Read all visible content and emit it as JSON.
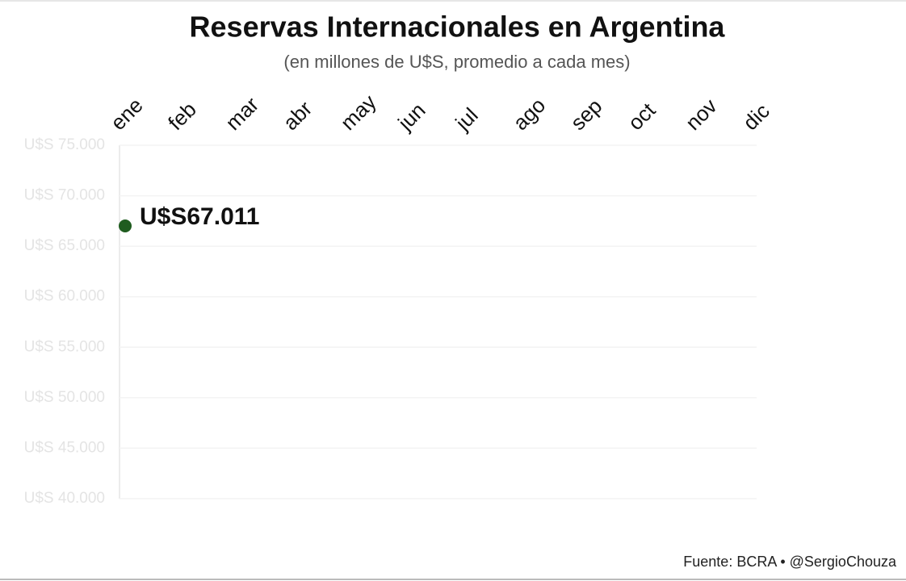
{
  "chart_data": {
    "type": "line",
    "title": "Reservas Internacionales en Argentina",
    "subtitle": "(en millones de U$S, promedio a cada mes)",
    "source": "Fuente: BCRA • @SergioChouza",
    "categories": [
      "ene",
      "feb",
      "mar",
      "abr",
      "may",
      "jun",
      "jul",
      "ago",
      "sep",
      "oct",
      "nov",
      "dic"
    ],
    "series": [
      {
        "name": "Reservas",
        "color": "#1f5c1f",
        "values": [
          67011,
          null,
          null,
          null,
          null,
          null,
          null,
          null,
          null,
          null,
          null,
          null
        ],
        "value_labels": [
          "U$S67.011",
          null,
          null,
          null,
          null,
          null,
          null,
          null,
          null,
          null,
          null,
          null
        ]
      }
    ],
    "ylim": [
      40000,
      75000
    ],
    "yticks": [
      {
        "value": 40000,
        "label": "U$S 40.000"
      },
      {
        "value": 45000,
        "label": "U$S 45.000"
      },
      {
        "value": 50000,
        "label": "U$S 50.000"
      },
      {
        "value": 55000,
        "label": "U$S 55.000"
      },
      {
        "value": 60000,
        "label": "U$S 60.000"
      },
      {
        "value": 65000,
        "label": "U$S 65.000"
      },
      {
        "value": 70000,
        "label": "U$S 70.000"
      },
      {
        "value": 75000,
        "label": "U$S 75.000"
      }
    ],
    "grid": true
  }
}
